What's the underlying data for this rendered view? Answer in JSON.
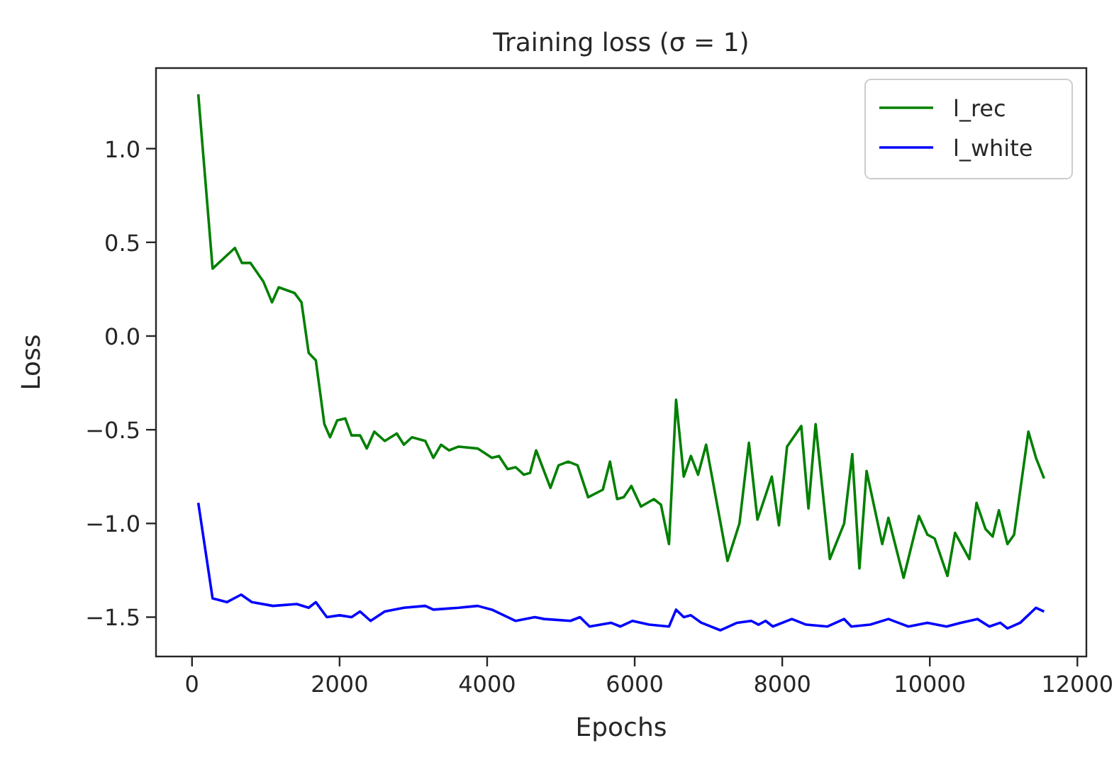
{
  "chart_data": {
    "type": "line",
    "title": "Training loss (σ = 1)",
    "xlabel": "Epochs",
    "ylabel": "Loss",
    "xlim": [
      -488,
      12122
    ],
    "ylim": [
      -1.71,
      1.43
    ],
    "xticks": [
      0,
      2000,
      4000,
      6000,
      8000,
      10000,
      12000
    ],
    "yticks": [
      {
        "value": 1,
        "label": "1.0"
      },
      {
        "value": 0.5,
        "label": "0.5"
      },
      {
        "value": 0,
        "label": "0.0"
      },
      {
        "value": -0.5,
        "label": "−0.5"
      },
      {
        "value": -1,
        "label": "−1.0"
      },
      {
        "value": -1.5,
        "label": "−1.5"
      }
    ],
    "legend": "top right",
    "grid": false,
    "line_style": "solid",
    "series": [
      {
        "name": "l_rec",
        "color": "#008000",
        "x": [
          85,
          279,
          581,
          677,
          793,
          968,
          1084,
          1175,
          1388,
          1484,
          1581,
          1678,
          1794,
          1871,
          1968,
          2078,
          2162,
          2278,
          2369,
          2471,
          2613,
          2775,
          2872,
          2981,
          3162,
          3271,
          3375,
          3484,
          3613,
          3871,
          4064,
          4161,
          4277,
          4387,
          4498,
          4581,
          4664,
          4858,
          4968,
          5098,
          5226,
          5369,
          5568,
          5665,
          5762,
          5852,
          5955,
          6085,
          6259,
          6356,
          6465,
          6561,
          6665,
          6762,
          6859,
          6968,
          7258,
          7420,
          7548,
          7664,
          7858,
          7955,
          8065,
          8258,
          8355,
          8452,
          8645,
          8839,
          8949,
          9046,
          9143,
          9355,
          9439,
          9645,
          9852,
          9968,
          10065,
          10239,
          10342,
          10536,
          10633,
          10755,
          10852,
          10936,
          11052,
          11142,
          11336,
          11439,
          11549
        ],
        "values": [
          1.29,
          0.36,
          0.47,
          0.39,
          0.39,
          0.29,
          0.18,
          0.26,
          0.23,
          0.18,
          -0.09,
          -0.13,
          -0.47,
          -0.54,
          -0.45,
          -0.44,
          -0.53,
          -0.53,
          -0.6,
          -0.51,
          -0.56,
          -0.52,
          -0.58,
          -0.54,
          -0.56,
          -0.65,
          -0.58,
          -0.61,
          -0.59,
          -0.6,
          -0.65,
          -0.64,
          -0.71,
          -0.7,
          -0.74,
          -0.73,
          -0.61,
          -0.81,
          -0.69,
          -0.67,
          -0.69,
          -0.86,
          -0.82,
          -0.67,
          -0.87,
          -0.86,
          -0.8,
          -0.91,
          -0.87,
          -0.9,
          -1.11,
          -0.34,
          -0.75,
          -0.64,
          -0.74,
          -0.58,
          -1.2,
          -1.0,
          -0.57,
          -0.98,
          -0.75,
          -1.01,
          -0.59,
          -0.48,
          -0.92,
          -0.47,
          -1.19,
          -1.0,
          -0.63,
          -1.24,
          -0.72,
          -1.11,
          -0.97,
          -1.29,
          -0.96,
          -1.06,
          -1.08,
          -1.28,
          -1.05,
          -1.19,
          -0.89,
          -1.03,
          -1.07,
          -0.93,
          -1.11,
          -1.06,
          -0.51,
          -0.65,
          -0.76
        ]
      },
      {
        "name": "l_white",
        "color": "#0000ff",
        "x": [
          85,
          279,
          472,
          666,
          810,
          1097,
          1420,
          1581,
          1678,
          1827,
          2001,
          2162,
          2278,
          2420,
          2613,
          2872,
          3162,
          3271,
          3613,
          3871,
          4064,
          4387,
          4645,
          4774,
          5129,
          5259,
          5388,
          5678,
          5807,
          5968,
          6194,
          6465,
          6561,
          6665,
          6762,
          6904,
          7160,
          7388,
          7581,
          7678,
          7774,
          7871,
          8130,
          8323,
          8613,
          8839,
          8936,
          9194,
          9439,
          9710,
          9968,
          10226,
          10420,
          10645,
          10807,
          10955,
          11052,
          11226,
          11439,
          11549
        ],
        "values": [
          -0.89,
          -1.4,
          -1.42,
          -1.38,
          -1.42,
          -1.44,
          -1.43,
          -1.45,
          -1.42,
          -1.5,
          -1.49,
          -1.5,
          -1.47,
          -1.52,
          -1.47,
          -1.45,
          -1.44,
          -1.46,
          -1.45,
          -1.44,
          -1.46,
          -1.52,
          -1.5,
          -1.51,
          -1.52,
          -1.5,
          -1.55,
          -1.53,
          -1.55,
          -1.52,
          -1.54,
          -1.55,
          -1.46,
          -1.5,
          -1.49,
          -1.53,
          -1.57,
          -1.53,
          -1.52,
          -1.54,
          -1.52,
          -1.55,
          -1.51,
          -1.54,
          -1.55,
          -1.51,
          -1.55,
          -1.54,
          -1.51,
          -1.55,
          -1.53,
          -1.55,
          -1.53,
          -1.51,
          -1.55,
          -1.53,
          -1.56,
          -1.53,
          -1.45,
          -1.47
        ]
      }
    ]
  }
}
